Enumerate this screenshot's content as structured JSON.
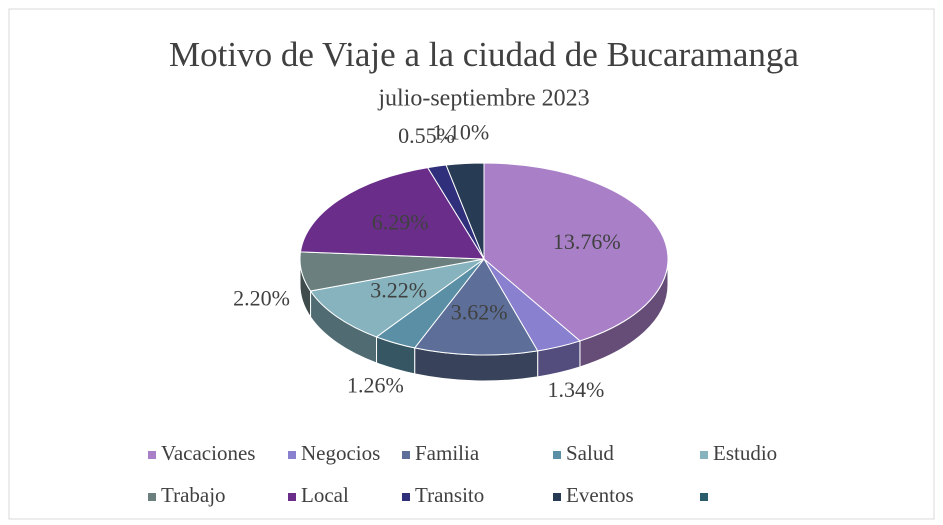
{
  "chart_data": {
    "type": "pie3d",
    "title": "Motivo de Viaje a la ciudad de Bucaramanga",
    "subtitle": "julio-septiembre 2023",
    "categories": [
      "Vacaciones",
      "Negocios",
      "Familia",
      "Salud",
      "Estudio",
      "Trabajo",
      "Local",
      "Transito",
      "Eventos",
      null
    ],
    "values": [
      13.76,
      1.34,
      3.62,
      1.26,
      3.22,
      2.2,
      6.29,
      0.55,
      1.1,
      null
    ],
    "value_labels": [
      "13.76%",
      "1.34%",
      "3.62%",
      "1.26%",
      "3.22%",
      "2.20%",
      "6.29%",
      "0.55%",
      "1.10%",
      null
    ],
    "colors": [
      "#a980c8",
      "#8a80d0",
      "#5d6f98",
      "#5a8fa6",
      "#86b3be",
      "#6b7f7f",
      "#6a2e8a",
      "#2f2f7c",
      "#283b55",
      "#2b5c6b"
    ],
    "legend": "bottom"
  }
}
